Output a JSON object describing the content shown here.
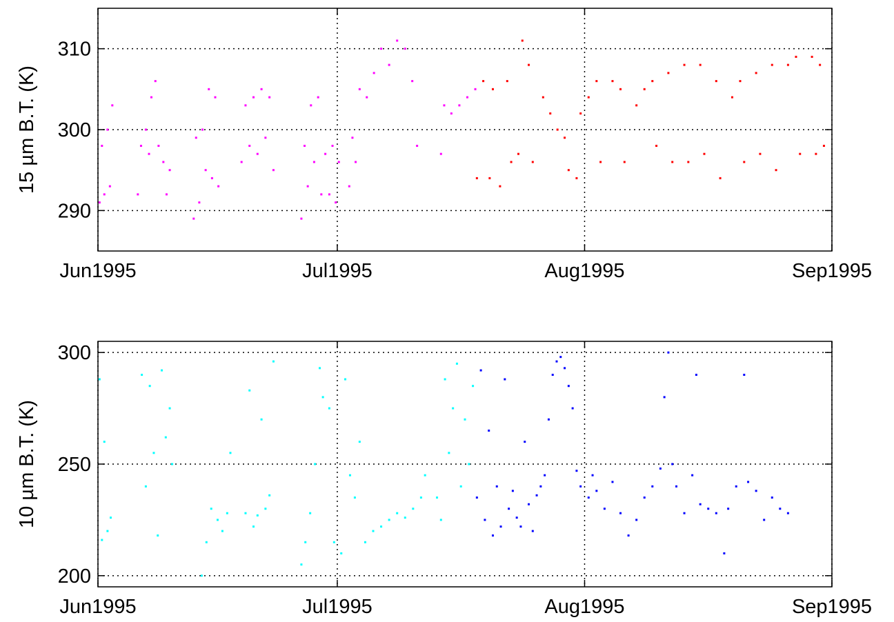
{
  "chart_data": [
    {
      "type": "scatter",
      "ylabel": "15 µm B.T. (K)",
      "xlim": [
        728811,
        728903
      ],
      "xticks": [
        {
          "value": 728811,
          "label": "Jun1995"
        },
        {
          "value": 728841,
          "label": "Jul1995"
        },
        {
          "value": 728872,
          "label": "Aug1995"
        },
        {
          "value": 728903,
          "label": "Sep1995"
        }
      ],
      "ylim": [
        285,
        315
      ],
      "yticks": [
        290,
        300,
        310
      ],
      "grid": true,
      "series": [
        {
          "color": "#ff00ff",
          "x": [
            728811.2,
            728811.5,
            728811.8,
            728812.2,
            728812.5,
            728812.8,
            728816.0,
            728816.4,
            728817.0,
            728817.4,
            728817.7,
            728818.2,
            728818.6,
            728819.2,
            728819.6,
            728820.0,
            728823.0,
            728823.3,
            728823.7,
            728824.1,
            728824.5,
            728824.9,
            728825.3,
            728825.7,
            728826.1,
            728829.0,
            728829.5,
            728830.0,
            728830.5,
            728831.0,
            728831.5,
            728832.0,
            728832.5,
            728833.0,
            728836.5,
            728836.9,
            728837.3,
            728837.7,
            728838.1,
            728838.6,
            728839.0,
            728839.5,
            728840.0,
            728840.4,
            728840.8,
            728841.2,
            728842.5,
            728842.9,
            728843.3,
            728843.8,
            728844.7,
            728845.6,
            728846.5,
            728847.5,
            728848.5,
            728849.5,
            728850.4,
            728851.0,
            728854.0,
            728854.4,
            728855.3,
            728856.3,
            728857.3,
            728858.3
          ],
          "values": [
            291,
            298,
            292,
            300,
            293,
            303,
            292,
            298,
            300,
            297,
            304,
            306,
            298,
            296,
            292,
            295,
            289,
            299,
            291,
            300,
            295,
            305,
            294,
            304,
            293,
            296,
            303,
            298,
            304,
            297,
            305,
            299,
            304,
            295,
            289,
            298,
            293,
            303,
            296,
            304,
            292,
            297,
            292,
            298,
            291,
            296,
            293,
            299,
            296,
            305,
            304,
            307,
            310,
            308,
            311,
            310,
            306,
            298,
            297,
            303,
            302,
            303,
            304,
            305
          ]
        },
        {
          "color": "#ff0000",
          "x": [
            728858.5,
            728859.3,
            728860.1,
            728860.5,
            728861.4,
            728862.3,
            728862.8,
            728863.7,
            728864.2,
            728865.0,
            728865.5,
            728866.8,
            728867.7,
            728868.6,
            728869.5,
            728870.0,
            728871.0,
            728871.5,
            728872.5,
            728873.5,
            728874.0,
            728875.5,
            728876.5,
            728877.0,
            728878.5,
            728879.5,
            728880.5,
            728881.0,
            728882.5,
            728883.0,
            728884.5,
            728885.0,
            728886.5,
            728887.0,
            728888.5,
            728889.0,
            728890.5,
            728891.5,
            728892.0,
            728893.5,
            728894.0,
            728895.5,
            728896.0,
            728897.5,
            728898.5,
            728899.0,
            728900.5,
            728901.0,
            728901.5,
            728902.0
          ],
          "values": [
            294,
            306,
            294,
            305,
            293,
            306,
            296,
            297,
            311,
            308,
            296,
            304,
            302,
            300,
            299,
            295,
            294,
            302,
            304,
            306,
            296,
            306,
            305,
            296,
            303,
            305,
            306,
            298,
            307,
            296,
            308,
            296,
            308,
            297,
            306,
            294,
            304,
            306,
            296,
            307,
            297,
            308,
            295,
            308,
            309,
            297,
            309,
            297,
            308,
            298
          ]
        }
      ]
    },
    {
      "type": "scatter",
      "ylabel": "10 µm B.T. (K)",
      "xlim": [
        728811,
        728903
      ],
      "xticks": [
        {
          "value": 728811,
          "label": "Jun1995"
        },
        {
          "value": 728841,
          "label": "Jul1995"
        },
        {
          "value": 728872,
          "label": "Aug1995"
        },
        {
          "value": 728903,
          "label": "Sep1995"
        }
      ],
      "ylim": [
        195,
        305
      ],
      "yticks": [
        200,
        250,
        300
      ],
      "grid": true,
      "series": [
        {
          "color": "#00ffff",
          "x": [
            728811.2,
            728811.5,
            728811.8,
            728812.2,
            728812.6,
            728816.5,
            728817.0,
            728817.5,
            728818.0,
            728818.5,
            728819.0,
            728819.5,
            728820.0,
            728820.3,
            728824.0,
            728824.6,
            728825.2,
            728826.0,
            728826.6,
            728827.2,
            728827.6,
            728829.5,
            728830.0,
            728830.5,
            728831.0,
            728831.5,
            728832.0,
            728832.5,
            728833.0,
            728836.5,
            728837.0,
            728837.6,
            728838.2,
            728838.8,
            728839.2,
            728840.0,
            728840.6,
            728841.5,
            728842.0,
            728842.6,
            728843.2,
            728843.8,
            728844.5,
            728845.5,
            728846.5,
            728847.5,
            728848.5,
            728849.5,
            728850.5,
            728851.5,
            728852.0,
            728853.5,
            728854.0,
            728854.5,
            728855.0,
            728855.5,
            728856.0,
            728856.5,
            728857.0,
            728857.5,
            728858.0
          ],
          "values": [
            288,
            216,
            260,
            220,
            226,
            290,
            240,
            285,
            255,
            218,
            292,
            262,
            275,
            250,
            200,
            215,
            230,
            225,
            220,
            228,
            255,
            228,
            283,
            222,
            227,
            270,
            230,
            236,
            296,
            205,
            215,
            228,
            250,
            293,
            280,
            275,
            215,
            210,
            288,
            245,
            235,
            260,
            215,
            220,
            222,
            225,
            228,
            226,
            230,
            235,
            245,
            235,
            225,
            288,
            255,
            275,
            295,
            240,
            270,
            250,
            285
          ]
        },
        {
          "color": "#0000ff",
          "x": [
            728858.5,
            728859.0,
            728859.5,
            728860.0,
            728860.5,
            728861.0,
            728861.5,
            728862.0,
            728862.5,
            728863.0,
            728863.5,
            728864.0,
            728864.5,
            728865.0,
            728865.5,
            728866.0,
            728866.5,
            728867.0,
            728867.5,
            728868.0,
            728868.5,
            728869.0,
            728869.5,
            728870.0,
            728870.5,
            728871.0,
            728871.5,
            728872.5,
            728873.0,
            728873.5,
            728874.5,
            728875.5,
            728876.5,
            728877.5,
            728878.5,
            728879.5,
            728880.5,
            728881.5,
            728882.0,
            728882.5,
            728883.0,
            728883.5,
            728884.5,
            728885.5,
            728886.0,
            728886.5,
            728887.5,
            728888.5,
            728889.5,
            728890.0,
            728891.0,
            728892.0,
            728892.5,
            728893.5,
            728894.5,
            728895.5,
            728896.5,
            728897.5
          ],
          "values": [
            235,
            292,
            225,
            265,
            218,
            240,
            222,
            288,
            230,
            238,
            226,
            222,
            260,
            232,
            220,
            236,
            240,
            245,
            270,
            290,
            296,
            298,
            293,
            285,
            275,
            247,
            240,
            235,
            245,
            238,
            230,
            242,
            228,
            218,
            225,
            235,
            240,
            248,
            280,
            300,
            250,
            240,
            228,
            245,
            290,
            232,
            230,
            228,
            210,
            230,
            240,
            290,
            242,
            238,
            225,
            235,
            230,
            228
          ]
        }
      ]
    }
  ]
}
